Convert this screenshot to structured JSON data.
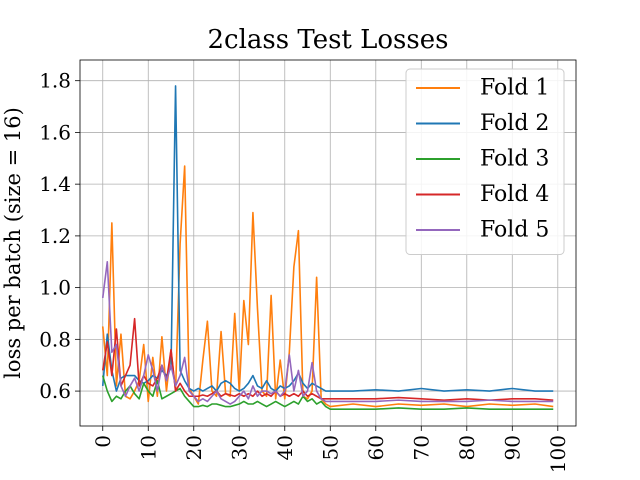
{
  "chart_data": {
    "type": "line",
    "title": "2class Test Losses",
    "xlabel": "",
    "ylabel": "loss per batch (size = 16)",
    "xlim": [
      -5,
      104
    ],
    "ylim": [
      0.465,
      1.88
    ],
    "xticks": [
      0,
      10,
      20,
      30,
      40,
      50,
      60,
      70,
      80,
      90,
      100
    ],
    "xtick_labels": [
      "0",
      "10",
      "20",
      "30",
      "40",
      "50",
      "60",
      "70",
      "80",
      "90",
      "100"
    ],
    "yticks": [
      0.6,
      0.8,
      1.0,
      1.2,
      1.4,
      1.6,
      1.8
    ],
    "ytick_labels": [
      "0.6",
      "0.8",
      "1.0",
      "1.2",
      "1.4",
      "1.6",
      "1.8"
    ],
    "grid": true,
    "legend_position": "top-right",
    "series": [
      {
        "name": "Fold 1",
        "color": "#ff7f0e",
        "x": [
          0,
          1,
          2,
          3,
          4,
          5,
          6,
          7,
          8,
          9,
          10,
          11,
          12,
          13,
          14,
          15,
          16,
          17,
          18,
          19,
          20,
          21,
          22,
          23,
          24,
          25,
          26,
          27,
          28,
          29,
          30,
          31,
          32,
          33,
          34,
          35,
          36,
          37,
          38,
          39,
          40,
          41,
          42,
          43,
          44,
          45,
          46,
          47,
          48,
          49,
          50,
          55,
          60,
          65,
          70,
          75,
          80,
          85,
          90,
          95,
          99
        ],
        "values": [
          0.85,
          0.66,
          1.25,
          0.62,
          0.82,
          0.58,
          0.57,
          0.6,
          0.64,
          0.78,
          0.56,
          0.73,
          0.58,
          0.81,
          0.6,
          0.76,
          0.6,
          1.17,
          1.47,
          0.61,
          0.58,
          0.55,
          0.72,
          0.87,
          0.6,
          0.58,
          0.83,
          0.59,
          0.58,
          0.9,
          0.6,
          0.95,
          0.78,
          1.29,
          0.92,
          0.6,
          0.58,
          0.97,
          0.57,
          0.72,
          0.57,
          0.75,
          1.08,
          1.22,
          0.58,
          0.57,
          0.6,
          1.04,
          0.57,
          0.55,
          0.54,
          0.55,
          0.54,
          0.55,
          0.545,
          0.55,
          0.54,
          0.55,
          0.545,
          0.55,
          0.54
        ]
      },
      {
        "name": "Fold 2",
        "color": "#1f77b4",
        "x": [
          0,
          1,
          2,
          3,
          4,
          5,
          6,
          7,
          8,
          9,
          10,
          11,
          12,
          13,
          14,
          15,
          16,
          17,
          18,
          19,
          20,
          21,
          22,
          23,
          24,
          25,
          26,
          27,
          28,
          29,
          30,
          31,
          32,
          33,
          34,
          35,
          36,
          37,
          38,
          39,
          40,
          41,
          42,
          43,
          44,
          45,
          46,
          47,
          48,
          49,
          50,
          55,
          60,
          65,
          70,
          75,
          80,
          85,
          90,
          95,
          99
        ],
        "values": [
          0.62,
          0.82,
          0.68,
          0.6,
          0.65,
          0.66,
          0.66,
          0.66,
          0.64,
          0.63,
          0.64,
          0.66,
          0.65,
          0.68,
          0.66,
          0.69,
          1.78,
          0.68,
          0.64,
          0.61,
          0.6,
          0.61,
          0.6,
          0.61,
          0.62,
          0.6,
          0.63,
          0.64,
          0.63,
          0.61,
          0.6,
          0.61,
          0.63,
          0.66,
          0.62,
          0.61,
          0.64,
          0.61,
          0.6,
          0.62,
          0.61,
          0.62,
          0.64,
          0.67,
          0.63,
          0.61,
          0.63,
          0.62,
          0.61,
          0.6,
          0.6,
          0.6,
          0.605,
          0.6,
          0.61,
          0.6,
          0.605,
          0.6,
          0.61,
          0.6,
          0.6
        ]
      },
      {
        "name": "Fold 3",
        "color": "#2ca02c",
        "x": [
          0,
          1,
          2,
          3,
          4,
          5,
          6,
          7,
          8,
          9,
          10,
          11,
          12,
          13,
          14,
          15,
          16,
          17,
          18,
          19,
          20,
          21,
          22,
          23,
          24,
          25,
          26,
          27,
          28,
          29,
          30,
          31,
          32,
          33,
          34,
          35,
          36,
          37,
          38,
          39,
          40,
          41,
          42,
          43,
          44,
          45,
          46,
          47,
          48,
          49,
          50,
          55,
          60,
          65,
          70,
          75,
          80,
          85,
          90,
          95,
          99
        ],
        "values": [
          0.66,
          0.6,
          0.56,
          0.58,
          0.57,
          0.6,
          0.62,
          0.59,
          0.57,
          0.63,
          0.6,
          0.58,
          0.64,
          0.57,
          0.58,
          0.59,
          0.6,
          0.61,
          0.58,
          0.56,
          0.54,
          0.54,
          0.545,
          0.54,
          0.55,
          0.55,
          0.545,
          0.54,
          0.54,
          0.545,
          0.55,
          0.56,
          0.55,
          0.55,
          0.56,
          0.55,
          0.54,
          0.55,
          0.56,
          0.55,
          0.54,
          0.55,
          0.56,
          0.55,
          0.58,
          0.56,
          0.57,
          0.55,
          0.56,
          0.54,
          0.53,
          0.53,
          0.53,
          0.535,
          0.53,
          0.53,
          0.535,
          0.53,
          0.53,
          0.53,
          0.53
        ]
      },
      {
        "name": "Fold 4",
        "color": "#d62728",
        "x": [
          0,
          1,
          2,
          3,
          4,
          5,
          6,
          7,
          8,
          9,
          10,
          11,
          12,
          13,
          14,
          15,
          16,
          17,
          18,
          19,
          20,
          21,
          22,
          23,
          24,
          25,
          26,
          27,
          28,
          29,
          30,
          31,
          32,
          33,
          34,
          35,
          36,
          37,
          38,
          39,
          40,
          41,
          42,
          43,
          44,
          45,
          46,
          47,
          48,
          49,
          50,
          55,
          60,
          65,
          70,
          75,
          80,
          85,
          90,
          95,
          99
        ],
        "values": [
          0.68,
          0.79,
          0.66,
          0.84,
          0.62,
          0.66,
          0.7,
          0.88,
          0.62,
          0.66,
          0.63,
          0.62,
          0.65,
          0.7,
          0.64,
          0.76,
          0.6,
          0.63,
          0.6,
          0.58,
          0.58,
          0.58,
          0.585,
          0.58,
          0.59,
          0.6,
          0.58,
          0.59,
          0.585,
          0.58,
          0.59,
          0.58,
          0.59,
          0.58,
          0.6,
          0.58,
          0.59,
          0.58,
          0.6,
          0.58,
          0.59,
          0.58,
          0.59,
          0.58,
          0.6,
          0.58,
          0.59,
          0.58,
          0.57,
          0.57,
          0.57,
          0.57,
          0.57,
          0.575,
          0.57,
          0.565,
          0.57,
          0.565,
          0.57,
          0.57,
          0.565
        ]
      },
      {
        "name": "Fold 5",
        "color": "#9467bd",
        "x": [
          0,
          1,
          2,
          3,
          4,
          5,
          6,
          7,
          8,
          9,
          10,
          11,
          12,
          13,
          14,
          15,
          16,
          17,
          18,
          19,
          20,
          21,
          22,
          23,
          24,
          25,
          26,
          27,
          28,
          29,
          30,
          31,
          32,
          33,
          34,
          35,
          36,
          37,
          38,
          39,
          40,
          41,
          42,
          43,
          44,
          45,
          46,
          47,
          48,
          49,
          50,
          55,
          60,
          65,
          70,
          75,
          80,
          85,
          90,
          95,
          99
        ],
        "values": [
          0.96,
          1.1,
          0.75,
          0.78,
          0.62,
          0.58,
          0.62,
          0.65,
          0.6,
          0.66,
          0.74,
          0.68,
          0.6,
          0.7,
          0.64,
          0.7,
          0.62,
          0.66,
          0.73,
          0.6,
          0.58,
          0.56,
          0.57,
          0.56,
          0.58,
          0.6,
          0.57,
          0.56,
          0.55,
          0.56,
          0.58,
          0.6,
          0.57,
          0.62,
          0.58,
          0.6,
          0.6,
          0.59,
          0.6,
          0.58,
          0.6,
          0.74,
          0.6,
          0.68,
          0.58,
          0.6,
          0.71,
          0.6,
          0.57,
          0.56,
          0.56,
          0.56,
          0.56,
          0.565,
          0.56,
          0.56,
          0.56,
          0.565,
          0.56,
          0.56,
          0.56
        ]
      }
    ]
  }
}
